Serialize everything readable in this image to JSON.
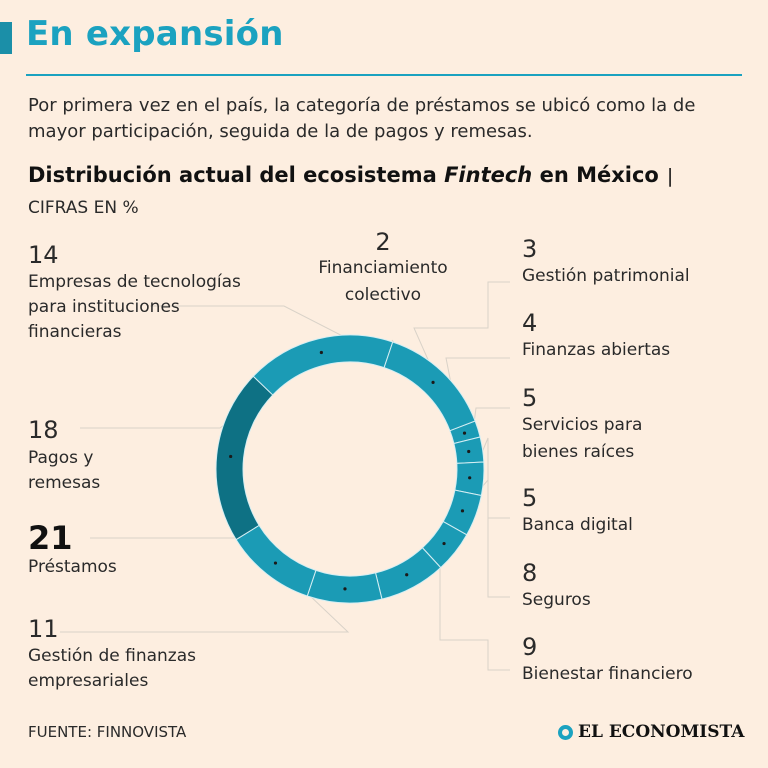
{
  "title": "En expansión",
  "intro": "Por primera vez en el país, la categoría de préstamos se ubicó como la de mayor participación, seguida de la de pagos y remesas.",
  "chart_heading": {
    "part1": "Distribución actual del ecosistema ",
    "italic": "Fintech",
    "part2": " en México",
    "separator": "|"
  },
  "units": "CIFRAS EN %",
  "chart_data": {
    "type": "pie",
    "title": "Distribución actual del ecosistema Fintech en México",
    "unit": "%",
    "slices": [
      {
        "key": "financiamiento",
        "label": "Financiamiento colectivo",
        "value": 2
      },
      {
        "key": "patrimonial",
        "label": "Gestión patrimonial",
        "value": 3
      },
      {
        "key": "abiertas",
        "label": "Finanzas abiertas",
        "value": 4
      },
      {
        "key": "raices",
        "label": "Servicios para bienes raíces",
        "value": 5
      },
      {
        "key": "banca",
        "label": "Banca digital",
        "value": 5
      },
      {
        "key": "seguros",
        "label": "Seguros",
        "value": 8
      },
      {
        "key": "bienestar",
        "label": "Bienestar financiero",
        "value": 9
      },
      {
        "key": "empresariales",
        "label": "Gestión de finanzas empresariales",
        "value": 11
      },
      {
        "key": "prestamos",
        "label": "Préstamos",
        "value": 21
      },
      {
        "key": "pagos",
        "label": "Pagos y remesas",
        "value": 18
      },
      {
        "key": "tecnologias",
        "label": "Empresas de tecnologías para instituciones financieras",
        "value": 14
      }
    ]
  },
  "labels": {
    "tecnologias": {
      "num": "14",
      "lines": [
        "Empresas de tecnologías",
        "para instituciones",
        "financieras"
      ]
    },
    "financiamiento": {
      "num": "2",
      "lines": [
        "Financiamiento",
        "colectivo"
      ]
    },
    "patrimonial": {
      "num": "3",
      "lines": [
        "Gestión patrimonial"
      ]
    },
    "abiertas": {
      "num": "4",
      "lines": [
        "Finanzas abiertas"
      ]
    },
    "raices": {
      "num": "5",
      "lines": [
        "Servicios para",
        "bienes raíces"
      ]
    },
    "banca": {
      "num": "5",
      "lines": [
        "Banca digital"
      ]
    },
    "seguros": {
      "num": "8",
      "lines": [
        "Seguros"
      ]
    },
    "bienestar": {
      "num": "9",
      "lines": [
        "Bienestar financiero"
      ]
    },
    "pagos": {
      "num": "18",
      "lines": [
        "Pagos y",
        "remesas"
      ]
    },
    "prestamos": {
      "num": "21",
      "lines": [
        "Préstamos"
      ]
    },
    "empresariales": {
      "num": "11",
      "lines": [
        "Gestión de finanzas",
        "empresariales"
      ]
    }
  },
  "colors": {
    "ring": "#1b9bb5",
    "highlight": "#0e7184",
    "divider": "#d5eef3",
    "leader": "#d9d2c8",
    "accent": "#1ba2c0"
  },
  "source": "FUENTE: FINNOVISTA",
  "brand": "EL ECONOMISTA"
}
